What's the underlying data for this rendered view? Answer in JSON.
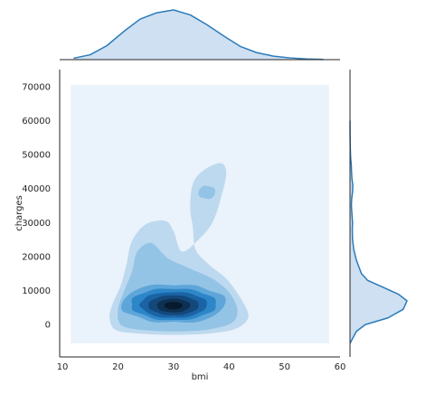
{
  "chart_data": {
    "type": "kde_joint",
    "title": "",
    "xlabel": "bmi",
    "ylabel": "charges",
    "xlim": [
      9.5,
      60
    ],
    "ylim": [
      -9500,
      75000
    ],
    "x_ticks": [
      10,
      20,
      30,
      40,
      50,
      60
    ],
    "y_ticks": [
      0,
      10000,
      20000,
      30000,
      40000,
      50000,
      60000,
      70000
    ],
    "x_tick_labels": [
      "10",
      "20",
      "30",
      "40",
      "50",
      "60"
    ],
    "y_tick_labels": [
      "0",
      "10000",
      "20000",
      "30000",
      "40000",
      "50000",
      "60000",
      "70000"
    ],
    "grid": false,
    "joint": {
      "kind": "filled-density-contours",
      "background_region": {
        "x": [
          11.5,
          58
        ],
        "y": [
          -5500,
          70500
        ]
      },
      "density_peaks": [
        {
          "bmi": 30,
          "charges": 6000,
          "level": "highest"
        },
        {
          "bmi": 36,
          "charges": 39000,
          "level": "secondary"
        },
        {
          "bmi": 28,
          "charges": 19000,
          "level": "tertiary"
        }
      ]
    },
    "marginal_x": {
      "variable": "bmi",
      "points": [
        [
          12,
          0.002
        ],
        [
          15,
          0.007
        ],
        [
          18,
          0.02
        ],
        [
          21,
          0.04
        ],
        [
          24,
          0.058
        ],
        [
          27,
          0.067
        ],
        [
          30,
          0.071
        ],
        [
          33,
          0.064
        ],
        [
          36,
          0.05
        ],
        [
          39,
          0.034
        ],
        [
          42,
          0.019
        ],
        [
          45,
          0.01
        ],
        [
          48,
          0.005
        ],
        [
          51,
          0.0025
        ],
        [
          54,
          0.001
        ],
        [
          57,
          0.0003
        ]
      ]
    },
    "marginal_y": {
      "variable": "charges",
      "points": [
        [
          -5500,
          0
        ],
        [
          -2000,
          0.05
        ],
        [
          0,
          0.12
        ],
        [
          2000,
          0.3
        ],
        [
          4500,
          0.42
        ],
        [
          7000,
          0.45
        ],
        [
          9000,
          0.38
        ],
        [
          11000,
          0.26
        ],
        [
          13000,
          0.14
        ],
        [
          15000,
          0.09
        ],
        [
          17000,
          0.07
        ],
        [
          19000,
          0.05
        ],
        [
          22000,
          0.03
        ],
        [
          25000,
          0.02
        ],
        [
          28000,
          0.018
        ],
        [
          30000,
          0.02
        ],
        [
          32000,
          0.016
        ],
        [
          35000,
          0.011
        ],
        [
          37000,
          0.013
        ],
        [
          39000,
          0.02
        ],
        [
          41000,
          0.022
        ],
        [
          43000,
          0.015
        ],
        [
          45000,
          0.012
        ],
        [
          47000,
          0.01
        ],
        [
          49000,
          0.005
        ],
        [
          52000,
          0.002
        ],
        [
          56000,
          0.0005
        ],
        [
          60000,
          0
        ]
      ]
    },
    "colors": {
      "background": "#eaf2fb",
      "levels": [
        "#bdd9ef",
        "#93c4e6",
        "#5ea6d9",
        "#2d86c7",
        "#1a64a6",
        "#14487a",
        "#0e3052",
        "#081a2e"
      ],
      "line": "#2b7bba",
      "fill": "#c6dbee"
    }
  }
}
